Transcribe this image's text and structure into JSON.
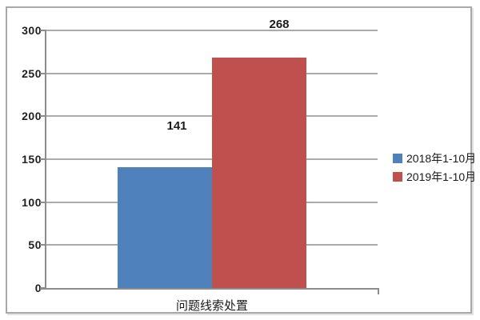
{
  "chart_data": {
    "type": "bar",
    "title": "",
    "categories": [
      "问题线索处置"
    ],
    "series": [
      {
        "name": "2018年1-10月",
        "values": [
          141
        ],
        "color": "#4f81bd"
      },
      {
        "name": "2019年1-10月",
        "values": [
          268
        ],
        "color": "#c0504d"
      }
    ],
    "xlabel": "问题线索处置",
    "ylabel": "",
    "ylim": [
      0,
      300
    ],
    "yticks": [
      0,
      50,
      100,
      150,
      200,
      250,
      300
    ],
    "grid": "horizontal",
    "legend_position": "right",
    "data_labels": [
      141,
      268
    ]
  },
  "colors": {
    "grid": "#ababab",
    "axis": "#8c8c8c",
    "text": "#1f1f1f",
    "frame_border": "#a9a9a9",
    "background": "#ffffff"
  }
}
